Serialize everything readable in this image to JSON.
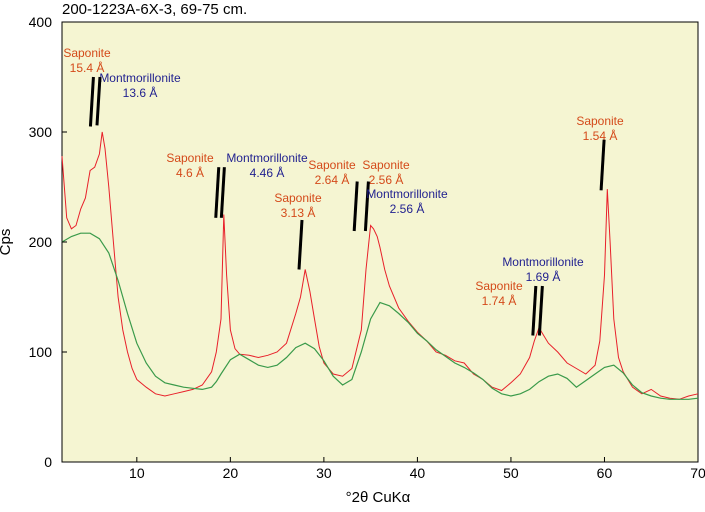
{
  "chart_data": {
    "type": "line",
    "title": "200-1223A-6X-3, 69-75 cm.",
    "xlabel": "°2θ CuKα",
    "ylabel": "Cps",
    "xlim": [
      2,
      70
    ],
    "ylim": [
      0,
      400
    ],
    "xticks": [
      10,
      20,
      30,
      40,
      50,
      60,
      70
    ],
    "yticks": [
      0,
      100,
      200,
      300,
      400
    ],
    "background": "#f5f5d2",
    "grid": false,
    "series": [
      {
        "color": "#e8202a",
        "x": [
          2,
          2.5,
          3,
          3.5,
          4,
          4.5,
          5,
          5.5,
          6,
          6.3,
          6.6,
          7,
          7.5,
          8,
          8.5,
          9,
          9.5,
          10,
          11,
          12,
          13,
          14,
          15,
          16,
          17,
          18,
          18.5,
          19,
          19.3,
          19.6,
          20,
          20.5,
          21,
          22,
          23,
          24,
          25,
          26,
          27,
          27.5,
          28,
          28.5,
          29,
          29.5,
          30,
          31,
          32,
          33,
          34,
          34.5,
          35,
          35.3,
          35.7,
          36,
          36.5,
          37,
          38,
          39,
          40,
          41,
          42,
          43,
          44,
          45,
          46,
          47,
          48,
          49,
          50,
          51,
          52,
          52.5,
          53,
          53.5,
          54,
          55,
          56,
          57,
          58,
          59,
          59.5,
          60,
          60.3,
          60.6,
          61,
          61.5,
          62,
          63,
          64,
          65,
          66,
          67,
          68,
          69,
          70
        ],
        "values": [
          278,
          222,
          212,
          215,
          230,
          240,
          265,
          268,
          280,
          300,
          285,
          250,
          200,
          150,
          120,
          100,
          85,
          75,
          68,
          62,
          60,
          62,
          64,
          66,
          70,
          82,
          100,
          130,
          225,
          170,
          120,
          103,
          98,
          97,
          95,
          97,
          100,
          108,
          135,
          150,
          175,
          155,
          130,
          105,
          90,
          80,
          78,
          85,
          120,
          175,
          215,
          212,
          205,
          195,
          175,
          160,
          140,
          128,
          118,
          110,
          100,
          97,
          92,
          90,
          80,
          75,
          68,
          65,
          72,
          80,
          95,
          110,
          122,
          115,
          108,
          100,
          90,
          85,
          80,
          88,
          110,
          170,
          248,
          200,
          130,
          95,
          82,
          68,
          62,
          66,
          60,
          58,
          57,
          60,
          62
        ]
      },
      {
        "color": "#3a9a4a",
        "x": [
          2,
          3,
          4,
          5,
          6,
          7,
          8,
          9,
          10,
          11,
          12,
          13,
          14,
          15,
          16,
          17,
          18,
          18.5,
          19,
          20,
          21,
          22,
          23,
          24,
          25,
          26,
          27,
          28,
          29,
          30,
          31,
          32,
          33,
          34,
          35,
          36,
          37,
          38,
          39,
          40,
          41,
          42,
          43,
          44,
          45,
          46,
          47,
          48,
          49,
          50,
          51,
          52,
          53,
          54,
          55,
          56,
          57,
          58,
          59,
          60,
          61,
          62,
          63,
          64,
          65,
          66,
          67,
          68,
          69,
          70
        ],
        "values": [
          200,
          205,
          208,
          208,
          203,
          190,
          165,
          135,
          108,
          90,
          78,
          72,
          70,
          68,
          67,
          66,
          68,
          73,
          80,
          93,
          98,
          93,
          88,
          86,
          88,
          95,
          104,
          108,
          103,
          92,
          78,
          70,
          75,
          100,
          130,
          145,
          142,
          135,
          127,
          117,
          110,
          102,
          96,
          90,
          86,
          81,
          75,
          67,
          62,
          60,
          62,
          66,
          73,
          78,
          80,
          76,
          68,
          74,
          80,
          86,
          88,
          81,
          70,
          63,
          60,
          58,
          57,
          57,
          57,
          58
        ]
      }
    ],
    "annotations": [
      {
        "lines": [
          "Saponite",
          "15.4 Å"
        ],
        "color": "#d44a1a",
        "x": 5.2,
        "tick_top": 350,
        "tick_bottom": 305
      },
      {
        "lines": [
          "Montmorillonite",
          "13.6 Å"
        ],
        "color": "#1f1f8f",
        "x": 5.9,
        "tick_top": 350,
        "tick_bottom": 306
      },
      {
        "lines": [
          "Saponite",
          "4.6 Å"
        ],
        "color": "#d44a1a",
        "x": 18.6,
        "tick_top": 268,
        "tick_bottom": 222
      },
      {
        "lines": [
          "Montmorillonite",
          "4.46 Å"
        ],
        "color": "#1f1f8f",
        "x": 19.2,
        "tick_top": 268,
        "tick_bottom": 222
      },
      {
        "lines": [
          "Saponite",
          "3.13 Å"
        ],
        "color": "#d44a1a",
        "x": 27.5,
        "tick_top": 220,
        "tick_bottom": 175
      },
      {
        "lines": [
          "Saponite",
          "2.64 Å"
        ],
        "color": "#d44a1a",
        "x": 33.4,
        "tick_top": 255,
        "tick_bottom": 210
      },
      {
        "lines": [
          "Saponite",
          "2.56 Å"
        ],
        "color": "#d44a1a",
        "x": 34.6,
        "tick_top": 255,
        "tick_bottom": 210
      },
      {
        "lines": [
          "Montmorillonite",
          "2.56 Å"
        ],
        "color": "#1f1f8f",
        "x": 34.6,
        "tick_top": null,
        "tick_bottom": null
      },
      {
        "lines": [
          "Saponite",
          "1.74 Å"
        ],
        "color": "#d44a1a",
        "x": 52.5,
        "tick_top": 160,
        "tick_bottom": 115
      },
      {
        "lines": [
          "Montmorillonite",
          "1.69 Å"
        ],
        "color": "#1f1f8f",
        "x": 53.2,
        "tick_top": 160,
        "tick_bottom": 115
      },
      {
        "lines": [
          "Saponite",
          "1.54 Å"
        ],
        "color": "#d44a1a",
        "x": 59.8,
        "tick_top": 293,
        "tick_bottom": 247
      }
    ]
  }
}
